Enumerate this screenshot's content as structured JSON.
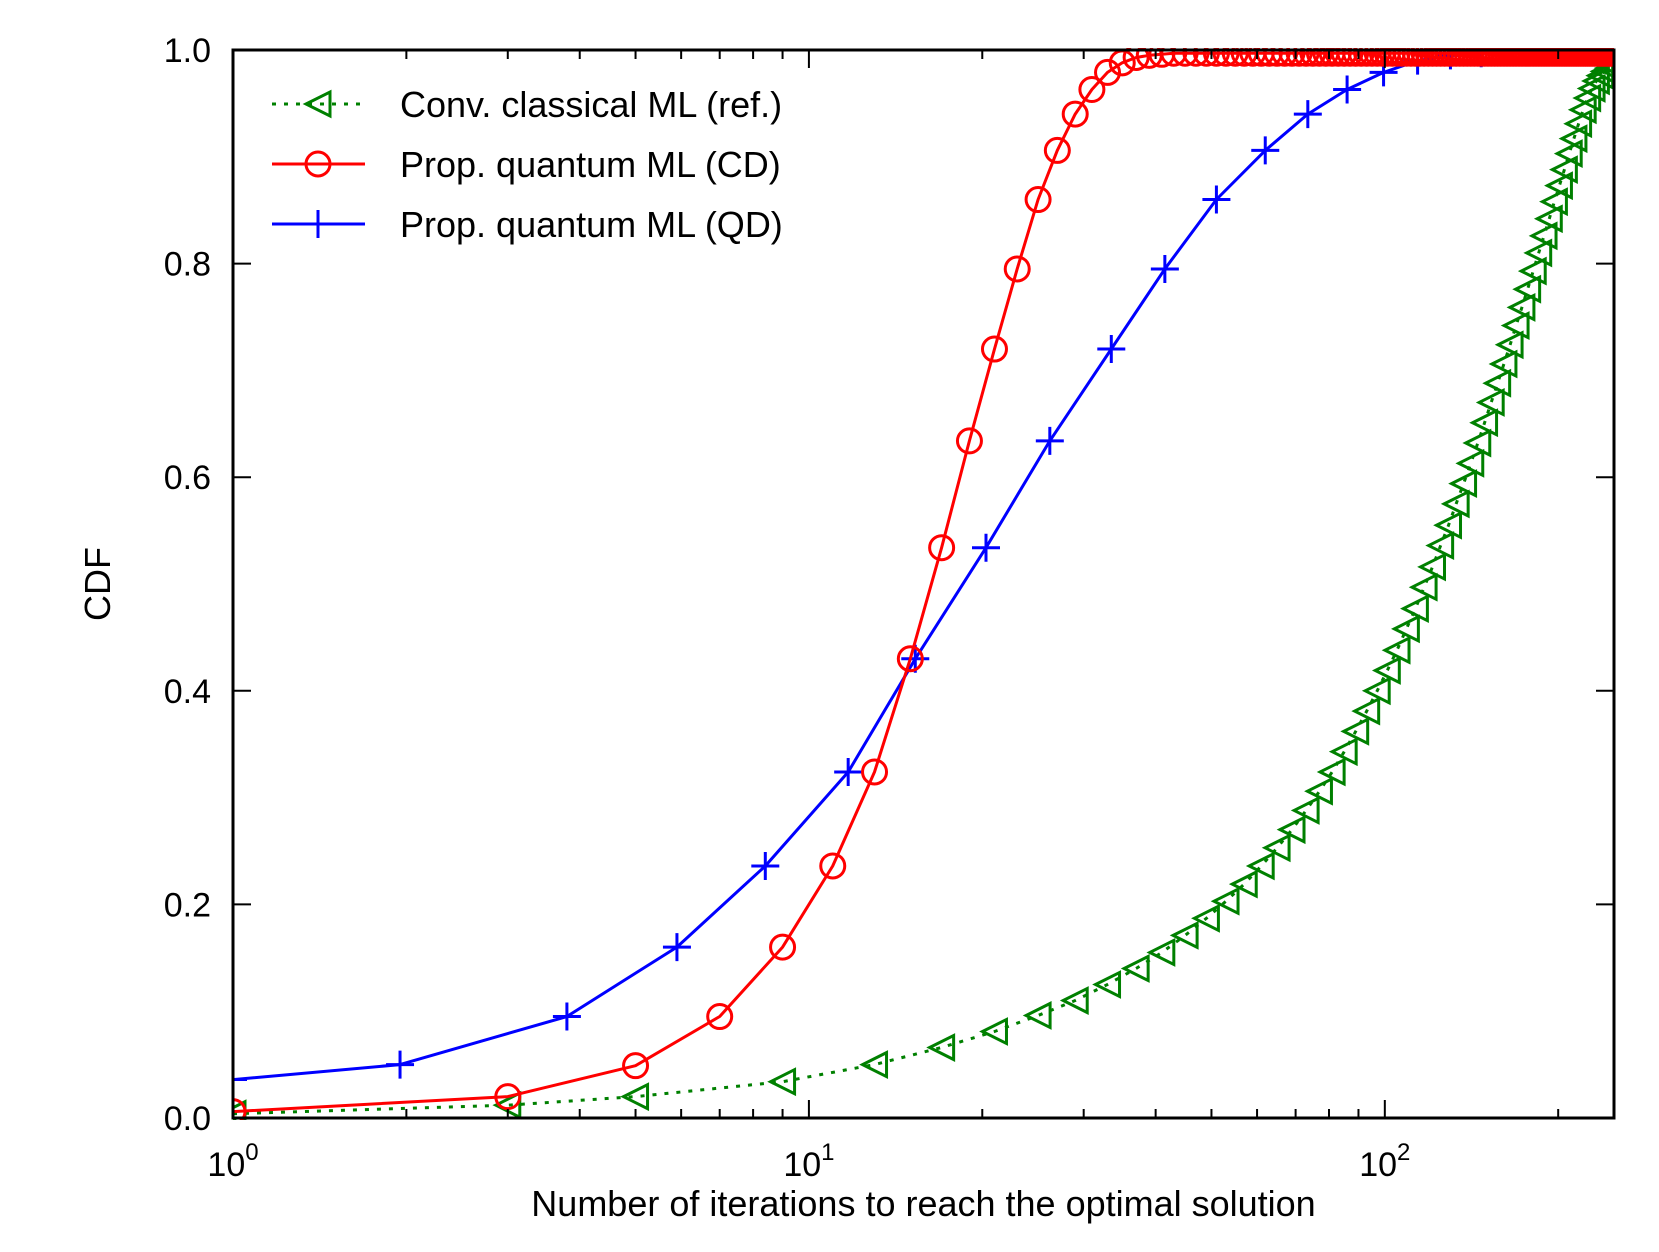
{
  "chart_data": {
    "type": "line",
    "title": "",
    "xlabel": "Number of iterations to reach the optimal solution",
    "ylabel": "CDF",
    "xscale": "log",
    "xlim": [
      1,
      250
    ],
    "ylim": [
      0,
      1
    ],
    "grid": false,
    "legend_position": "top-left",
    "x_ticks": [
      {
        "value": 1,
        "base": "10",
        "exp": "0"
      },
      {
        "value": 10,
        "base": "10",
        "exp": "1"
      },
      {
        "value": 100,
        "base": "10",
        "exp": "2"
      }
    ],
    "y_ticks": [
      {
        "value": 0.0,
        "label": "0.0"
      },
      {
        "value": 0.2,
        "label": "0.2"
      },
      {
        "value": 0.4,
        "label": "0.4"
      },
      {
        "value": 0.6,
        "label": "0.6"
      },
      {
        "value": 0.8,
        "label": "0.8"
      },
      {
        "value": 1.0,
        "label": "1.0"
      }
    ],
    "series": [
      {
        "name": "Conv. classical ML (ref.)",
        "color": "#008000",
        "line_style": "dotted",
        "marker": "triangle-left",
        "x": [
          1,
          3,
          5,
          9,
          13,
          17,
          21,
          25,
          29,
          33,
          37,
          41,
          45,
          49,
          53,
          57,
          61,
          65,
          69,
          73,
          77,
          81,
          85,
          89,
          93,
          97,
          101,
          105,
          109,
          113,
          117,
          121,
          125,
          129,
          133,
          137,
          141,
          145,
          149,
          153,
          157,
          161,
          165,
          169,
          173,
          177,
          181,
          185,
          189,
          193,
          197,
          201,
          205,
          209,
          213,
          217,
          221,
          225,
          229,
          233,
          237,
          241,
          245,
          249
        ],
        "y": [
          0.004,
          0.012,
          0.02,
          0.034,
          0.05,
          0.066,
          0.081,
          0.096,
          0.11,
          0.125,
          0.14,
          0.155,
          0.171,
          0.187,
          0.203,
          0.219,
          0.236,
          0.253,
          0.27,
          0.288,
          0.306,
          0.324,
          0.343,
          0.362,
          0.381,
          0.4,
          0.419,
          0.438,
          0.458,
          0.477,
          0.497,
          0.516,
          0.536,
          0.555,
          0.575,
          0.594,
          0.613,
          0.632,
          0.651,
          0.67,
          0.688,
          0.706,
          0.724,
          0.742,
          0.759,
          0.776,
          0.793,
          0.81,
          0.826,
          0.842,
          0.858,
          0.873,
          0.888,
          0.903,
          0.917,
          0.931,
          0.944,
          0.955,
          0.964,
          0.971,
          0.976,
          0.98,
          0.983,
          0.985
        ]
      },
      {
        "name": "Prop. quantum ML (CD)",
        "color": "#ff0000",
        "line_style": "solid",
        "marker": "circle",
        "x": [
          1,
          3,
          5,
          7,
          9,
          11,
          13,
          15,
          17,
          19,
          21,
          23,
          25,
          27,
          29,
          31,
          33,
          35,
          37,
          39,
          41,
          43,
          45,
          47,
          49,
          51,
          53,
          55,
          57,
          59,
          61,
          63,
          65,
          67,
          69,
          71,
          73,
          75,
          77,
          79,
          81,
          83,
          85,
          87,
          89,
          91,
          93,
          95,
          97,
          99,
          101,
          103,
          105,
          107,
          109,
          111,
          113,
          115,
          117,
          119,
          121,
          123,
          125,
          127,
          129,
          131,
          133,
          135,
          137,
          139,
          141,
          143,
          145,
          147,
          149,
          151,
          153,
          155,
          157,
          159,
          161,
          163,
          165,
          167,
          169,
          171,
          173,
          175,
          177,
          179,
          181,
          183,
          185,
          187,
          189,
          191,
          193,
          195,
          197,
          199,
          201,
          203,
          205,
          207,
          209,
          211,
          213,
          215,
          217,
          219,
          221,
          223,
          225,
          227,
          229,
          231,
          233,
          235,
          237,
          239,
          241,
          243,
          245,
          247,
          249
        ],
        "y": [
          0.006,
          0.02,
          0.049,
          0.095,
          0.16,
          0.236,
          0.324,
          0.43,
          0.534,
          0.634,
          0.72,
          0.795,
          0.86,
          0.906,
          0.94,
          0.963,
          0.979,
          0.988,
          0.993,
          0.995,
          0.996,
          0.997,
          0.997,
          0.997,
          0.997,
          0.997,
          0.997,
          0.997,
          0.997,
          0.997,
          0.997,
          0.997,
          0.997,
          0.997,
          0.997,
          0.997,
          0.997,
          0.997,
          0.997,
          0.997,
          0.997,
          0.997,
          0.997,
          0.997,
          0.997,
          0.997,
          0.997,
          0.997,
          0.997,
          0.997,
          0.997,
          0.997,
          0.997,
          0.997,
          0.997,
          0.997,
          0.997,
          0.997,
          0.997,
          0.997,
          0.997,
          0.997,
          0.997,
          0.997,
          0.997,
          0.997,
          0.997,
          0.997,
          0.997,
          0.997,
          0.997,
          0.997,
          0.997,
          0.997,
          0.997,
          0.997,
          0.997,
          0.997,
          0.997,
          0.997,
          0.997,
          0.997,
          0.997,
          0.997,
          0.997,
          0.997,
          0.997,
          0.997,
          0.997,
          0.997,
          0.997,
          0.997,
          0.997,
          0.997,
          0.997,
          0.997,
          0.997,
          0.997,
          0.997,
          0.997,
          0.997,
          0.997,
          0.997,
          0.997,
          0.997,
          0.997,
          0.997,
          0.997,
          0.997,
          0.997,
          0.997,
          0.997,
          0.997,
          0.997,
          0.997,
          0.997,
          0.997,
          0.997,
          0.997,
          0.997,
          0.997,
          0.997,
          0.997,
          0.997,
          0.997
        ]
      },
      {
        "name": "Prop. quantum ML (QD)",
        "color": "#0000ff",
        "line_style": "solid",
        "marker": "plus",
        "x": [
          1,
          1.95,
          3.8,
          5.9,
          8.4,
          11.7,
          15.3,
          20.3,
          26.2,
          33.5,
          41.5,
          51,
          62,
          73.5,
          86,
          99.5,
          114,
          130,
          147,
          164,
          182,
          201,
          221,
          240
        ],
        "y": [
          0.036,
          0.05,
          0.095,
          0.16,
          0.236,
          0.324,
          0.43,
          0.534,
          0.634,
          0.72,
          0.795,
          0.86,
          0.906,
          0.94,
          0.963,
          0.979,
          0.99,
          0.995,
          0.997,
          0.998,
          0.999,
          0.999,
          0.999,
          0.999
        ]
      }
    ]
  }
}
